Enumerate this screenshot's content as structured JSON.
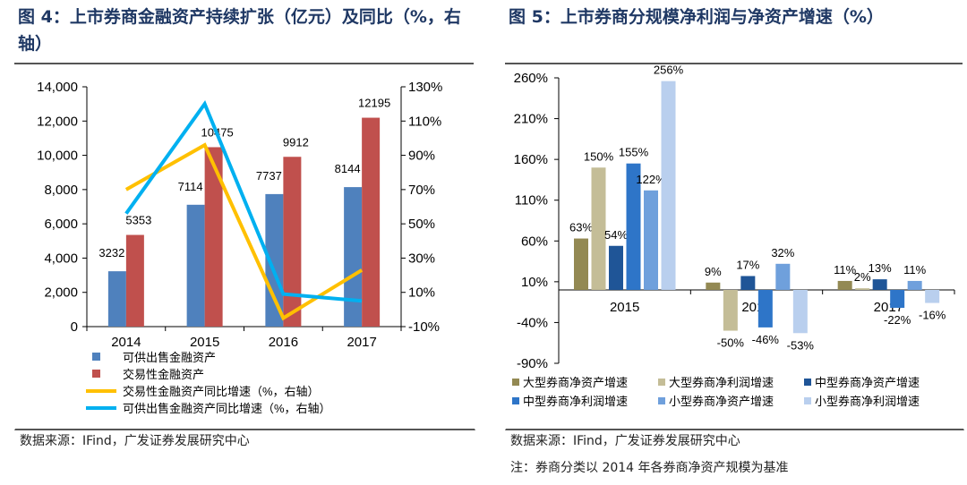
{
  "left": {
    "title": "图 4：上市券商金融资产持续扩张（亿元）及同比（%，右轴）",
    "source": "数据来源：IFind，广发证券发展研究中心",
    "chart_data": {
      "type": "bar+line",
      "categories": [
        "2014",
        "2015",
        "2016",
        "2017"
      ],
      "ylim": [
        0,
        14000
      ],
      "yticks": [
        "0",
        "2,000",
        "4,000",
        "6,000",
        "8,000",
        "10,000",
        "12,000",
        "14,000"
      ],
      "y2lim": [
        -10,
        130
      ],
      "y2ticks": [
        "-10%",
        "10%",
        "30%",
        "50%",
        "70%",
        "90%",
        "110%",
        "130%"
      ],
      "series": [
        {
          "name": "可供出售金融资产",
          "type": "bar",
          "axis": "left",
          "color": "#4f81bd",
          "values": [
            3232,
            7114,
            7737,
            8144
          ],
          "labels": [
            "3232",
            "7114",
            "7737",
            "8144"
          ]
        },
        {
          "name": "交易性金融资产",
          "type": "bar",
          "axis": "left",
          "color": "#c0504d",
          "values": [
            5353,
            10475,
            9912,
            12195
          ],
          "labels": [
            "5353",
            "10475",
            "9912",
            "12195"
          ]
        },
        {
          "name": "交易性金融资产同比增速（%，右轴）",
          "type": "line",
          "axis": "right",
          "color": "#ffc000",
          "values": [
            70,
            96,
            -5,
            23
          ]
        },
        {
          "name": "可供出售金融资产同比增速（%，右轴）",
          "type": "line",
          "axis": "right",
          "color": "#00b0f0",
          "values": [
            56,
            120,
            9,
            5
          ]
        }
      ],
      "legend": "bottom"
    }
  },
  "right": {
    "title": "图 5：上市券商分规模净利润与净资产增速（%）",
    "source": "数据来源：IFind，广发证券发展研究中心",
    "note": "注：券商分类以 2014 年各券商净资产规模为基准",
    "chart_data": {
      "type": "bar",
      "categories": [
        "2015",
        "2016",
        "2017"
      ],
      "ylim": [
        -90,
        260
      ],
      "yticks": [
        "-90%",
        "-40%",
        "10%",
        "60%",
        "110%",
        "160%",
        "210%",
        "260%"
      ],
      "series": [
        {
          "name": "大型券商净资产增速",
          "color": "#938953",
          "values": [
            63,
            9,
            11
          ],
          "labels": [
            "63%",
            "9%",
            "11%"
          ]
        },
        {
          "name": "大型券商净利润增速",
          "color": "#c4bd97",
          "values": [
            150,
            -50,
            2
          ],
          "labels": [
            "150%",
            "-50%",
            "2%"
          ]
        },
        {
          "name": "中型券商净资产增速",
          "color": "#1f5597",
          "values": [
            54,
            17,
            13
          ],
          "labels": [
            "54%",
            "17%",
            "13%"
          ]
        },
        {
          "name": "中型券商净利润增速",
          "color": "#2e75c8",
          "values": [
            155,
            -46,
            -22
          ],
          "labels": [
            "155%",
            "-46%",
            "-22%"
          ]
        },
        {
          "name": "小型券商净资产增速",
          "color": "#6fa0dc",
          "values": [
            122,
            32,
            11
          ],
          "labels": [
            "122%",
            "32%",
            "11%"
          ]
        },
        {
          "name": "小型券商净利润增速",
          "color": "#b9cfee",
          "values": [
            256,
            -53,
            -16
          ],
          "labels": [
            "256%",
            "-53%",
            "-16%"
          ]
        }
      ],
      "legend": "bottom"
    }
  }
}
